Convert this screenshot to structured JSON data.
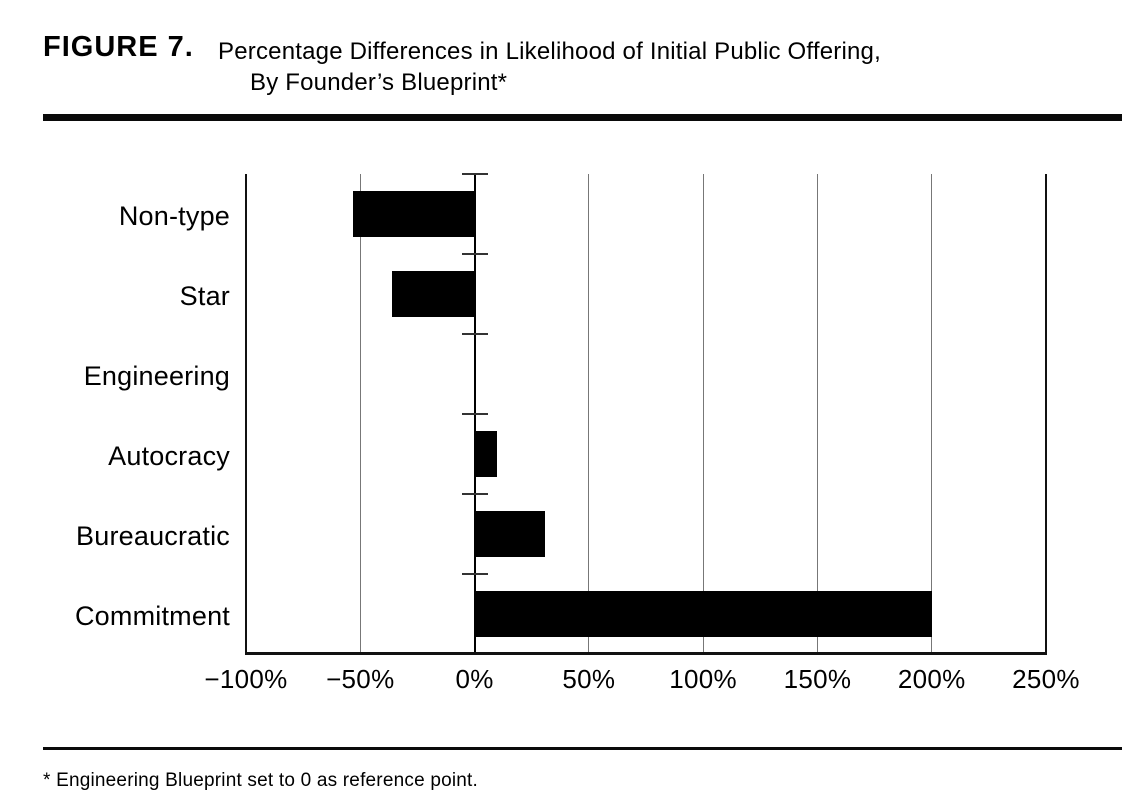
{
  "figure": {
    "label": "FIGURE 7.",
    "title_lines": [
      "Percentage Differences in Likelihood of Initial Public Offering,",
      "By Founder’s Blueprint*"
    ],
    "footnote": "* Engineering Blueprint set to 0 as reference point."
  },
  "chart_data": {
    "type": "bar",
    "orientation": "horizontal",
    "title": "Percentage Differences in Likelihood of Initial Public Offering, By Founder’s Blueprint",
    "categories": [
      "Non-type",
      "Star",
      "Engineering",
      "Autocracy",
      "Bureaucratic",
      "Commitment"
    ],
    "values": [
      -53,
      -36,
      0,
      10,
      31,
      200
    ],
    "xlabel": "",
    "ylabel": "",
    "xlim": [
      -100,
      250
    ],
    "xticks": [
      -100,
      -50,
      0,
      50,
      100,
      150,
      200,
      250
    ],
    "xtick_labels": [
      "−100%",
      "−50%",
      "0%",
      "50%",
      "100%",
      "150%",
      "200%",
      "250%"
    ],
    "grid": true,
    "legend": "none",
    "bar_color": "#000000",
    "gridline_color": "#777777",
    "axis_color": "#111111",
    "reference_category": "Engineering"
  }
}
